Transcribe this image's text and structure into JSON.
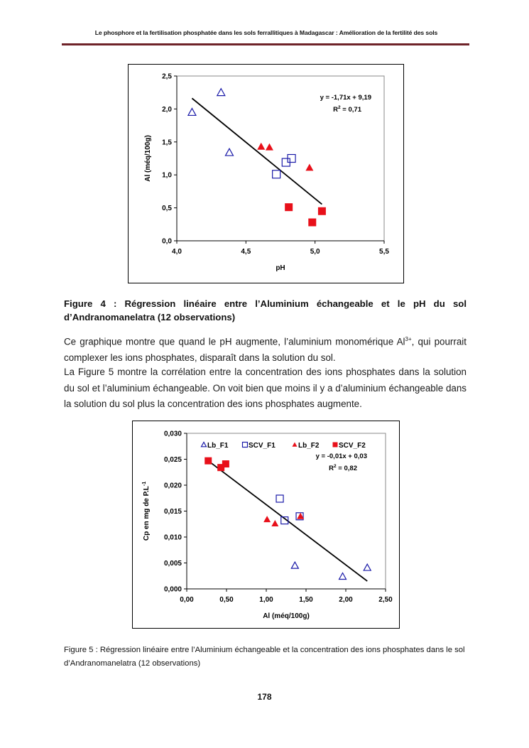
{
  "header": {
    "title": "Le phosphore et la fertilisation phosphatée dans les sols ferrallitiques à Madagascar : Amélioration de la fertilité des sols"
  },
  "figure4_caption": "Figure 4 : Régression linéaire entre l’Aluminium échangeable et le pH du sol d’Andranomanelatra (12 observations)",
  "paragraph1": {
    "before": "Ce graphique montre que quand le pH augmente, l’aluminium monomérique Al",
    "sup": "3+",
    "after": ", qui pourrait complexer les ions phosphates, disparaît dans la solution du sol."
  },
  "paragraph2": "La Figure 5 montre la corrélation entre la concentration des ions phosphates dans la solution du sol et l’aluminium échangeable. On voit bien que moins il y a d’aluminium échangeable dans la solution du sol plus la concentration des ions phosphates augmente.",
  "figure5_caption": "Figure 5 : Régression linéaire entre l’Aluminium échangeable et la concentration des ions phosphates dans le sol d’Andranomanelatra (12 observations)",
  "page_number": "178",
  "colors": {
    "blue": "#1a1aa8",
    "red": "#e8101a",
    "rule": "#6e2329"
  },
  "chart_data": [
    {
      "type": "scatter",
      "xlabel": "pH",
      "ylabel": "Al (méq/100g)",
      "xlim": [
        4.0,
        5.5
      ],
      "ylim": [
        0.0,
        2.5
      ],
      "xticks": [
        "4,0",
        "4,5",
        "5,0",
        "5,5"
      ],
      "yticks": [
        "0,0",
        "0,5",
        "1,0",
        "1,5",
        "2,0",
        "2,5"
      ],
      "equation": "y = -1,71x + 9,19",
      "r2_label": "R",
      "r2_value": " = 0,71",
      "trendline": {
        "x": [
          4.11,
          5.05
        ],
        "slope": -1.71,
        "intercept": 9.19
      },
      "series": [
        {
          "name": "Lb_F1",
          "marker": "triangle-open",
          "color": "#1a1aa8",
          "points": [
            [
              4.11,
              1.95
            ],
            [
              4.32,
              2.25
            ],
            [
              4.38,
              1.34
            ]
          ]
        },
        {
          "name": "SCV_F1",
          "marker": "square-open",
          "color": "#1a1aa8",
          "points": [
            [
              4.72,
              1.01
            ],
            [
              4.79,
              1.19
            ],
            [
              4.83,
              1.25
            ]
          ]
        },
        {
          "name": "Lb_F2",
          "marker": "triangle-filled",
          "color": "#e8101a",
          "points": [
            [
              4.61,
              1.43
            ],
            [
              4.67,
              1.42
            ],
            [
              4.96,
              1.11
            ]
          ]
        },
        {
          "name": "SCV_F2",
          "marker": "square-filled",
          "color": "#e8101a",
          "points": [
            [
              4.81,
              0.51
            ],
            [
              4.98,
              0.28
            ],
            [
              5.05,
              0.45
            ]
          ]
        }
      ]
    },
    {
      "type": "scatter",
      "xlabel": "Al (méq/100g)",
      "ylabel": "Cp en mg de P.L",
      "ylabel_sup": "-1",
      "xlim": [
        0.0,
        2.5
      ],
      "ylim": [
        0.0,
        0.03
      ],
      "xticks": [
        "0,00",
        "0,50",
        "1,00",
        "1,50",
        "2,00",
        "2,50"
      ],
      "yticks": [
        "0,000",
        "0,005",
        "0,010",
        "0,015",
        "0,020",
        "0,025",
        "0,030"
      ],
      "equation": "y = -0,01x + 0,03",
      "r2_label": "R",
      "r2_value": " = 0,82",
      "legend_position": "top",
      "trendline": {
        "x": [
          0.27,
          2.27
        ],
        "y": [
          0.0247,
          0.0015
        ]
      },
      "series": [
        {
          "name": "Lb_F1",
          "marker": "triangle-open",
          "color": "#1a1aa8",
          "points": [
            [
              1.36,
              0.0045
            ],
            [
              1.96,
              0.0024
            ],
            [
              2.27,
              0.0041
            ]
          ]
        },
        {
          "name": "SCV_F1",
          "marker": "square-open",
          "color": "#1a1aa8",
          "points": [
            [
              1.17,
              0.0174
            ],
            [
              1.23,
              0.0132
            ],
            [
              1.42,
              0.014
            ]
          ]
        },
        {
          "name": "Lb_F2",
          "marker": "triangle-filled",
          "color": "#e8101a",
          "points": [
            [
              1.01,
              0.0134
            ],
            [
              1.11,
              0.0126
            ],
            [
              1.43,
              0.014
            ]
          ]
        },
        {
          "name": "SCV_F2",
          "marker": "square-filled",
          "color": "#e8101a",
          "points": [
            [
              0.27,
              0.0247
            ],
            [
              0.43,
              0.0234
            ],
            [
              0.49,
              0.0241
            ]
          ]
        }
      ]
    }
  ]
}
